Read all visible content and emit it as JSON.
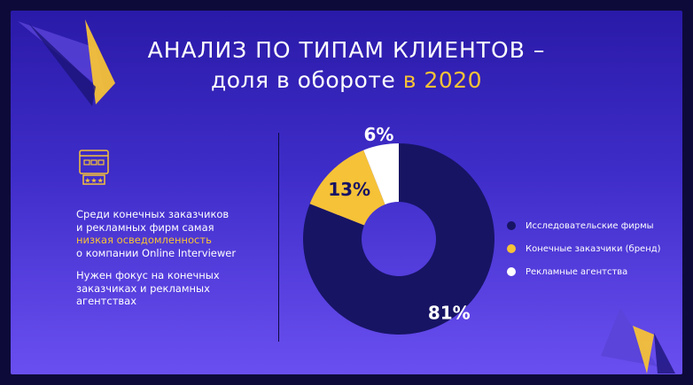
{
  "title": {
    "line1": "АНАЛИЗ ПО ТИПАМ КЛИЕНТОВ –",
    "line2_prefix": "доля в обороте",
    "line2_highlight": "в 2020"
  },
  "text": {
    "p1_a": "Среди конечных заказчиков",
    "p1_b": "и рекламных фирм самая",
    "p1_highlight": "низкая осведомленность",
    "p1_c": "о компании Online Interviewer",
    "p2_a": "Нужен фокус на конечных",
    "p2_b": "заказчиках и рекламных",
    "p2_c": "агентствах"
  },
  "icons": {
    "text_icon": "website-browser-rating-icon"
  },
  "colors": {
    "accent": "#f6c237",
    "navy": "#171464",
    "white": "#ffffff"
  },
  "chart_data": {
    "type": "pie",
    "variant": "donut",
    "categories": [
      "Исследовательские фирмы",
      "Конечные заказчики (бренд)",
      "Рекламные агентства"
    ],
    "values": [
      81,
      13,
      6
    ],
    "labels": [
      "81%",
      "13%",
      "6%"
    ],
    "colors": [
      "#171464",
      "#f6c237",
      "#ffffff"
    ],
    "legend_position": "right"
  }
}
